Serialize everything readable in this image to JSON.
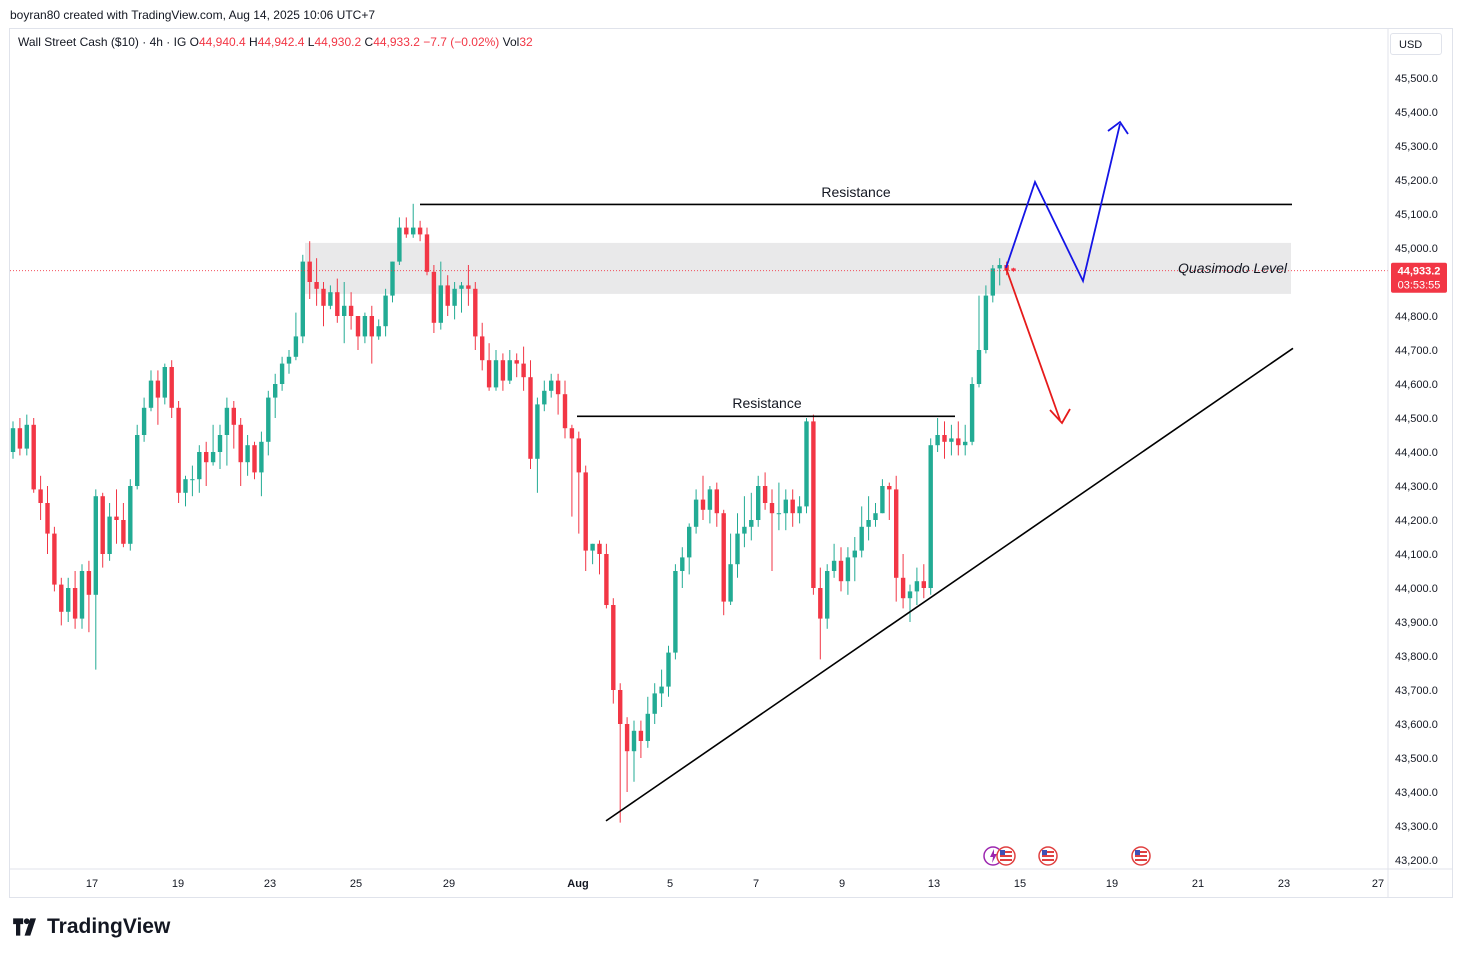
{
  "header": {
    "byline": "boyran80 created with TradingView.com, Aug 14, 2025 10:06 UTC+7"
  },
  "legend": {
    "symbol": "Wall Street Cash ($10) · 4h · IG",
    "o_label": "O",
    "o_value": "44,940.4",
    "h_label": "H",
    "h_value": "44,942.4",
    "l_label": "L",
    "l_value": "44,930.2",
    "c_label": "C",
    "c_value": "44,933.2",
    "change": "−7.7 (−0.02%)",
    "vol_label": "Vol",
    "vol_value": "32"
  },
  "currency": "USD",
  "price_tag": {
    "price": "44,933.2",
    "countdown": "03:53:55"
  },
  "brand": "TradingView",
  "colors": {
    "up": "#22ab94",
    "down": "#f23645",
    "blue": "#1515e6",
    "red": "#e61b1b",
    "zone": "#e9e9ea"
  },
  "chart_data": {
    "type": "candlestick",
    "y_ticks": [
      43200,
      43300,
      43400,
      43500,
      43600,
      43700,
      43800,
      43900,
      44000,
      44100,
      44200,
      44300,
      44400,
      44500,
      44600,
      44700,
      44800,
      44900,
      45000,
      45100,
      45200,
      45300,
      45400,
      45500
    ],
    "y_tick_labels": [
      "43,200.0",
      "43,300.0",
      "43,400.0",
      "43,500.0",
      "43,600.0",
      "43,700.0",
      "43,800.0",
      "43,900.0",
      "44,000.0",
      "44,100.0",
      "44,200.0",
      "44,300.0",
      "44,400.0",
      "44,500.0",
      "44,600.0",
      "44,700.0",
      "44,800.0",
      "44,900.0",
      "45,000.0",
      "45,100.0",
      "45,200.0",
      "45,300.0",
      "45,400.0",
      "45,500.0"
    ],
    "x_tick_labels": [
      "17",
      "19",
      "23",
      "25",
      "29",
      "Aug",
      "5",
      "7",
      "9",
      "13",
      "15",
      "19",
      "21",
      "23",
      "27"
    ],
    "annotations": {
      "resistance_top": "Resistance",
      "resistance_mid": "Resistance",
      "quasimodo": "Quasimodo Level"
    },
    "candles": [
      [
        44400,
        44470,
        44380,
        44490
      ],
      [
        44470,
        44410,
        44390,
        44500
      ],
      [
        44410,
        44480,
        44390,
        44510
      ],
      [
        44480,
        44290,
        44280,
        44500
      ],
      [
        44290,
        44250,
        44200,
        44330
      ],
      [
        44250,
        44160,
        44100,
        44300
      ],
      [
        44160,
        44010,
        43990,
        44180
      ],
      [
        44010,
        43930,
        43890,
        44030
      ],
      [
        43930,
        44000,
        43900,
        44030
      ],
      [
        44000,
        43910,
        43880,
        44050
      ],
      [
        43910,
        44050,
        43880,
        44070
      ],
      [
        44050,
        43980,
        43870,
        44080
      ],
      [
        43980,
        44270,
        43760,
        44290
      ],
      [
        44270,
        44100,
        44060,
        44280
      ],
      [
        44100,
        44210,
        44080,
        44250
      ],
      [
        44210,
        44200,
        44130,
        44290
      ],
      [
        44200,
        44130,
        44120,
        44250
      ],
      [
        44130,
        44300,
        44110,
        44320
      ],
      [
        44300,
        44450,
        44290,
        44480
      ],
      [
        44450,
        44530,
        44430,
        44560
      ],
      [
        44530,
        44610,
        44520,
        44640
      ],
      [
        44610,
        44560,
        44480,
        44640
      ],
      [
        44560,
        44650,
        44540,
        44660
      ],
      [
        44650,
        44530,
        44500,
        44670
      ],
      [
        44530,
        44280,
        44250,
        44550
      ],
      [
        44280,
        44320,
        44240,
        44330
      ],
      [
        44320,
        44320,
        44270,
        44360
      ],
      [
        44320,
        44400,
        44280,
        44420
      ],
      [
        44400,
        44370,
        44300,
        44430
      ],
      [
        44370,
        44400,
        44360,
        44480
      ],
      [
        44400,
        44450,
        44350,
        44480
      ],
      [
        44450,
        44530,
        44360,
        44560
      ],
      [
        44530,
        44480,
        44410,
        44550
      ],
      [
        44480,
        44370,
        44300,
        44500
      ],
      [
        44370,
        44420,
        44330,
        44450
      ],
      [
        44420,
        44340,
        44320,
        44430
      ],
      [
        44340,
        44430,
        44270,
        44460
      ],
      [
        44430,
        44560,
        44390,
        44580
      ],
      [
        44560,
        44600,
        44500,
        44630
      ],
      [
        44600,
        44660,
        44580,
        44680
      ],
      [
        44660,
        44680,
        44630,
        44700
      ],
      [
        44680,
        44740,
        44670,
        44810
      ],
      [
        44740,
        44960,
        44720,
        44980
      ],
      [
        44960,
        44900,
        44850,
        45020
      ],
      [
        44900,
        44880,
        44830,
        44970
      ],
      [
        44880,
        44830,
        44770,
        44900
      ],
      [
        44830,
        44870,
        44820,
        44890
      ],
      [
        44870,
        44800,
        44780,
        44910
      ],
      [
        44800,
        44830,
        44720,
        44900
      ],
      [
        44830,
        44800,
        44760,
        44870
      ],
      [
        44800,
        44740,
        44700,
        44790
      ],
      [
        44740,
        44800,
        44720,
        44810
      ],
      [
        44800,
        44740,
        44660,
        44830
      ],
      [
        44740,
        44770,
        44730,
        44790
      ],
      [
        44770,
        44860,
        44740,
        44880
      ],
      [
        44860,
        44960,
        44840,
        44960
      ],
      [
        44960,
        45060,
        44950,
        45090
      ],
      [
        45060,
        45040,
        45030,
        45090
      ],
      [
        45040,
        45060,
        45030,
        45130
      ],
      [
        45060,
        45040,
        45020,
        45080
      ],
      [
        45040,
        44930,
        44920,
        45060
      ],
      [
        44930,
        44780,
        44750,
        44950
      ],
      [
        44780,
        44890,
        44760,
        44960
      ],
      [
        44890,
        44830,
        44800,
        44920
      ],
      [
        44830,
        44880,
        44790,
        44900
      ],
      [
        44880,
        44890,
        44810,
        44900
      ],
      [
        44890,
        44880,
        44830,
        44950
      ],
      [
        44880,
        44740,
        44700,
        44900
      ],
      [
        44740,
        44670,
        44640,
        44780
      ],
      [
        44670,
        44590,
        44580,
        44720
      ],
      [
        44590,
        44670,
        44580,
        44700
      ],
      [
        44670,
        44610,
        44580,
        44690
      ],
      [
        44610,
        44670,
        44600,
        44700
      ],
      [
        44670,
        44660,
        44620,
        44690
      ],
      [
        44660,
        44620,
        44580,
        44710
      ],
      [
        44620,
        44380,
        44350,
        44670
      ],
      [
        44380,
        44540,
        44280,
        44560
      ],
      [
        44540,
        44580,
        44520,
        44610
      ],
      [
        44580,
        44610,
        44560,
        44630
      ],
      [
        44610,
        44570,
        44510,
        44630
      ],
      [
        44570,
        44470,
        44440,
        44610
      ],
      [
        44470,
        44440,
        44210,
        44480
      ],
      [
        44440,
        44340,
        44160,
        44460
      ],
      [
        44340,
        44110,
        44050,
        44360
      ],
      [
        44110,
        44130,
        44070,
        44130
      ],
      [
        44130,
        44100,
        44040,
        44140
      ],
      [
        44100,
        43950,
        43940,
        44130
      ],
      [
        43950,
        43700,
        43660,
        43970
      ],
      [
        43700,
        43600,
        43310,
        43720
      ],
      [
        43600,
        43520,
        43400,
        43620
      ],
      [
        43520,
        43580,
        43430,
        43610
      ],
      [
        43580,
        43550,
        43500,
        43610
      ],
      [
        43550,
        43630,
        43530,
        43680
      ],
      [
        43630,
        43690,
        43600,
        43720
      ],
      [
        43690,
        43710,
        43650,
        43760
      ],
      [
        43710,
        43810,
        43680,
        43830
      ],
      [
        43810,
        44050,
        43790,
        44070
      ],
      [
        44050,
        44090,
        44000,
        44120
      ],
      [
        44090,
        44180,
        44040,
        44190
      ],
      [
        44180,
        44260,
        44160,
        44290
      ],
      [
        44260,
        44230,
        44200,
        44330
      ],
      [
        44230,
        44290,
        44190,
        44300
      ],
      [
        44290,
        44220,
        44180,
        44310
      ],
      [
        44220,
        43960,
        43920,
        44230
      ],
      [
        43960,
        44070,
        43950,
        44160
      ],
      [
        44070,
        44160,
        44030,
        44220
      ],
      [
        44160,
        44180,
        44120,
        44270
      ],
      [
        44180,
        44200,
        44140,
        44280
      ],
      [
        44200,
        44300,
        44180,
        44330
      ],
      [
        44300,
        44250,
        44230,
        44340
      ],
      [
        44250,
        44220,
        44050,
        44290
      ],
      [
        44220,
        44220,
        44170,
        44310
      ],
      [
        44220,
        44260,
        44170,
        44290
      ],
      [
        44260,
        44220,
        44180,
        44290
      ],
      [
        44220,
        44240,
        44190,
        44270
      ],
      [
        44240,
        44490,
        44220,
        44500
      ],
      [
        44490,
        44000,
        43980,
        44510
      ],
      [
        44000,
        43910,
        43790,
        44060
      ],
      [
        43910,
        44050,
        43880,
        44070
      ],
      [
        44050,
        44080,
        44030,
        44130
      ],
      [
        44080,
        44020,
        43990,
        44120
      ],
      [
        44020,
        44090,
        43980,
        44120
      ],
      [
        44090,
        44110,
        44020,
        44150
      ],
      [
        44110,
        44180,
        44090,
        44240
      ],
      [
        44180,
        44200,
        44140,
        44270
      ],
      [
        44200,
        44220,
        44180,
        44250
      ],
      [
        44220,
        44300,
        44220,
        44320
      ],
      [
        44300,
        44290,
        44200,
        44310
      ],
      [
        44290,
        44030,
        43960,
        44330
      ],
      [
        44030,
        43970,
        43940,
        44100
      ],
      [
        43970,
        43990,
        43900,
        44010
      ],
      [
        43990,
        44020,
        43950,
        44060
      ],
      [
        44020,
        44000,
        43970,
        44070
      ],
      [
        44000,
        44420,
        43980,
        44440
      ],
      [
        44420,
        44450,
        44400,
        44500
      ],
      [
        44450,
        44430,
        44380,
        44490
      ],
      [
        44430,
        44440,
        44390,
        44480
      ],
      [
        44440,
        44420,
        44390,
        44490
      ],
      [
        44420,
        44430,
        44390,
        44480
      ],
      [
        44430,
        44600,
        44420,
        44620
      ],
      [
        44600,
        44700,
        44590,
        44860
      ],
      [
        44700,
        44860,
        44690,
        44890
      ],
      [
        44860,
        44940,
        44840,
        44950
      ],
      [
        44940,
        44950,
        44890,
        44970
      ],
      [
        44950,
        44933,
        44920,
        44960
      ],
      [
        44940,
        44933,
        44930,
        44942
      ]
    ]
  }
}
